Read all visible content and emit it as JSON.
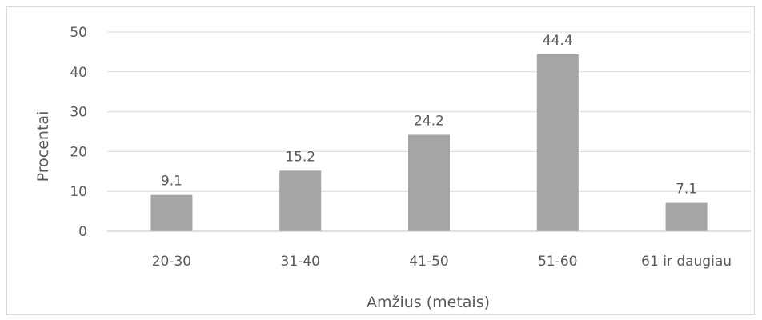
{
  "chart_data": {
    "type": "bar",
    "categories": [
      "20-30",
      "31-40",
      "41-50",
      "51-60",
      "61 ir daugiau"
    ],
    "values": [
      9.1,
      15.2,
      24.2,
      44.4,
      7.1
    ],
    "value_labels": [
      "9.1",
      "15.2",
      "24.2",
      "44.4",
      "7.1"
    ],
    "xlabel": "Amžius (metais)",
    "ylabel": "Procentai",
    "ylim": [
      0,
      50
    ],
    "yticks": [
      0,
      10,
      20,
      30,
      40,
      50
    ],
    "grid": true,
    "legend": "none",
    "colors": {
      "bar": "#a5a5a5",
      "grid": "#d9d9d9",
      "text": "#595959",
      "axis": "#bfbfbf"
    }
  }
}
